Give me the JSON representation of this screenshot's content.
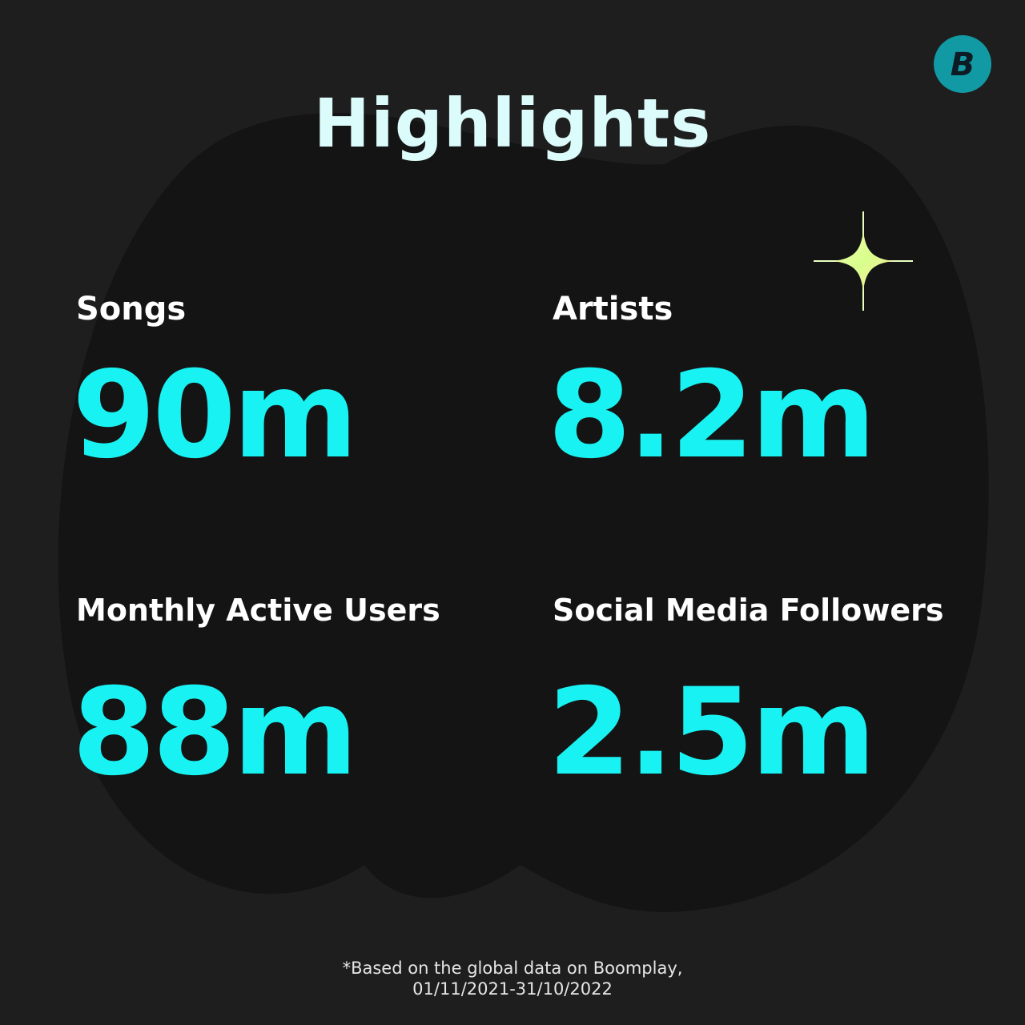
{
  "title": "Highlights",
  "brand": {
    "icon": "boomplay-logo-icon",
    "color": "#129aa4",
    "letter": "B"
  },
  "colors": {
    "background": "#1e1e1e",
    "blob": "#141414",
    "accent": "#19f2f2",
    "title": "#dcfbfb"
  },
  "stats": {
    "songs": {
      "label": "Songs",
      "value": "90m"
    },
    "artists": {
      "label": "Artists",
      "value": "8.2m"
    },
    "monthly_active_users": {
      "label": "Monthly Active Users",
      "value": "88m"
    },
    "social_media_followers": {
      "label": "Social Media Followers",
      "value": "2.5m"
    }
  },
  "footnote": {
    "line1": "*Based on the global data on Boomplay,",
    "line2": "01/11/2021-31/10/2022"
  }
}
